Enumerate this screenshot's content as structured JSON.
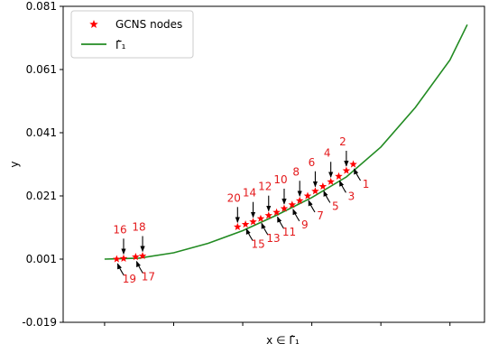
{
  "chart_data": {
    "type": "scatter",
    "title": "",
    "xlabel": "x ∈ Γ̂₁",
    "ylabel": "y",
    "ylim": [
      -0.019,
      0.081
    ],
    "xlim": [
      -0.12,
      1.1
    ],
    "yticks": [
      "0.081",
      "0.061",
      "0.041",
      "0.021",
      "0.001",
      "-0.019"
    ],
    "ytick_values": [
      0.081,
      0.061,
      0.041,
      0.021,
      0.001,
      -0.019
    ],
    "xticks_labeled": false,
    "grid": false,
    "legend_position": "top-left",
    "legend": [
      {
        "label": "GCNS nodes",
        "marker": "star",
        "color": "#ff0000"
      },
      {
        "label": "Γ̂₁",
        "marker": "line",
        "color": "#228b22"
      }
    ],
    "curve": {
      "name": "Γ̂₁",
      "color": "#228b22",
      "x": [
        0.0,
        0.1,
        0.2,
        0.3,
        0.4,
        0.5,
        0.6,
        0.7,
        0.8,
        0.9,
        1.0,
        1.05
      ],
      "y": [
        0.001,
        0.0013,
        0.003,
        0.006,
        0.01,
        0.015,
        0.0205,
        0.027,
        0.0365,
        0.049,
        0.064,
        0.0752
      ]
    },
    "series": [
      {
        "name": "GCNS nodes",
        "color": "#ff0000",
        "points": [
          {
            "id": "1",
            "x": 0.72,
            "y": 0.031
          },
          {
            "id": "2",
            "x": 0.7,
            "y": 0.029
          },
          {
            "id": "3",
            "x": 0.678,
            "y": 0.0272
          },
          {
            "id": "4",
            "x": 0.655,
            "y": 0.0255
          },
          {
            "id": "5",
            "x": 0.632,
            "y": 0.024
          },
          {
            "id": "6",
            "x": 0.61,
            "y": 0.0225
          },
          {
            "id": "7",
            "x": 0.588,
            "y": 0.021
          },
          {
            "id": "8",
            "x": 0.565,
            "y": 0.0195
          },
          {
            "id": "9",
            "x": 0.543,
            "y": 0.0182
          },
          {
            "id": "10",
            "x": 0.52,
            "y": 0.017
          },
          {
            "id": "11",
            "x": 0.498,
            "y": 0.0158
          },
          {
            "id": "12",
            "x": 0.475,
            "y": 0.0148
          },
          {
            "id": "13",
            "x": 0.452,
            "y": 0.0138
          },
          {
            "id": "14",
            "x": 0.43,
            "y": 0.0128
          },
          {
            "id": "15",
            "x": 0.408,
            "y": 0.012
          },
          {
            "id": "16",
            "x": 0.055,
            "y": 0.0012
          },
          {
            "id": "17",
            "x": 0.09,
            "y": 0.0017
          },
          {
            "id": "18",
            "x": 0.11,
            "y": 0.002
          },
          {
            "id": "19",
            "x": 0.035,
            "y": 0.001
          },
          {
            "id": "20",
            "x": 0.385,
            "y": 0.0112
          }
        ]
      }
    ],
    "annotations_above": [
      "2",
      "4",
      "6",
      "8",
      "10",
      "12",
      "14",
      "16",
      "18",
      "20"
    ],
    "annotations_below": [
      "1",
      "3",
      "5",
      "7",
      "9",
      "11",
      "13",
      "15",
      "17",
      "19"
    ]
  }
}
